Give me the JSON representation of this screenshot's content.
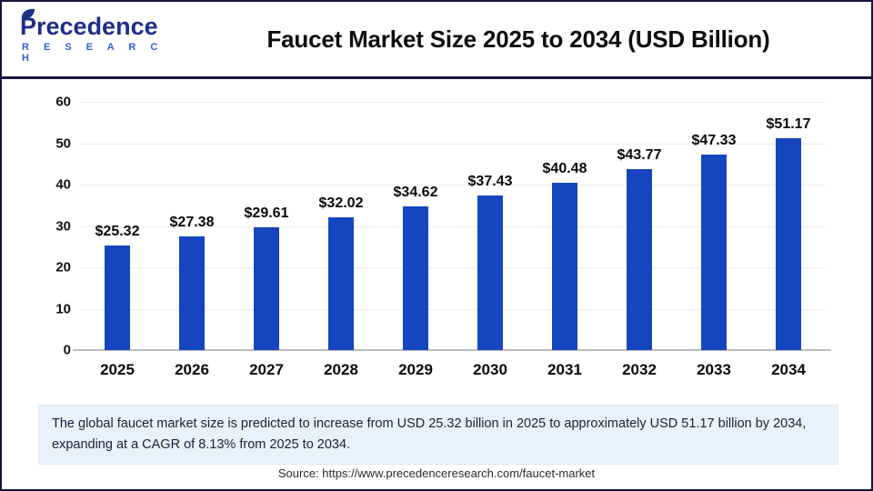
{
  "header": {
    "logo": {
      "name": "Precedence",
      "subtitle": "R E S E A R C H"
    },
    "title": "Faucet Market Size 2025 to 2034 (USD Billion)"
  },
  "chart_data": {
    "type": "bar",
    "title": "Faucet Market Size 2025 to 2034 (USD Billion)",
    "categories": [
      "2025",
      "2026",
      "2027",
      "2028",
      "2029",
      "2030",
      "2031",
      "2032",
      "2033",
      "2034"
    ],
    "values": [
      25.32,
      27.38,
      29.61,
      32.02,
      34.62,
      37.43,
      40.48,
      43.77,
      47.33,
      51.17
    ],
    "value_labels": [
      "$25.32",
      "$27.38",
      "$29.61",
      "$32.02",
      "$34.62",
      "$37.43",
      "$40.48",
      "$43.77",
      "$47.33",
      "$51.17"
    ],
    "unit": "USD Billion",
    "xlabel": "",
    "ylabel": "",
    "ylim": [
      0,
      60
    ],
    "yticks": [
      0,
      10,
      20,
      30,
      40,
      50,
      60
    ],
    "grid": true,
    "legend_position": "none"
  },
  "note": {
    "text": "The global faucet market size is predicted to increase from USD 25.32 billion in 2025 to approximately USD 51.17 billion by 2034, expanding at a CAGR of 8.13% from 2025 to 2034."
  },
  "source": {
    "text": "Source: https://www.precedenceresearch.com/faucet-market"
  },
  "colors": {
    "bar": "#1546c0",
    "navy_border": "#14143c",
    "note_bg": "#e9f1fb",
    "logo_dark": "#1e2f87",
    "logo_blue": "#2d62cc",
    "gridline": "#ededed",
    "axis_line": "#bdbdbd"
  }
}
